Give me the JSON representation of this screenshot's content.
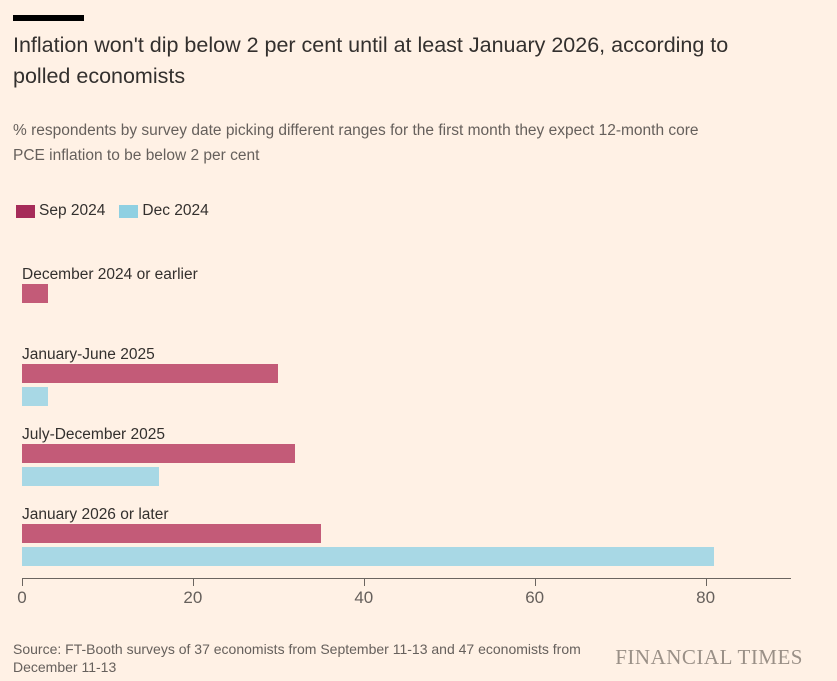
{
  "header": {
    "title": "Inflation won't dip below 2 per cent until at least January 2026, according to polled economists",
    "title_lines": [
      "Inflation won't dip below 2 per cent until at least January 2026, according to",
      "polled economists"
    ],
    "subtitle": "% respondents by survey date picking different ranges for the first month they expect 12-month core PCE inflation to be below 2 per cent",
    "subtitle_lines": [
      "% respondents by survey date picking different ranges for the first month they expect 12-month core",
      "PCE inflation to be below 2 per cent"
    ]
  },
  "chart_data": {
    "type": "bar",
    "orientation": "horizontal",
    "title": "Inflation won't dip below 2 per cent until at least January 2026, according to polled economists",
    "subtitle": "% respondents by survey date picking different ranges for the first month they expect 12-month core PCE inflation to be below 2 per cent",
    "categories": [
      "December 2024 or earlier",
      "January-June 2025",
      "July-December 2025",
      "January 2026 or later"
    ],
    "series": [
      {
        "name": "Sep 2024",
        "values": [
          3,
          30,
          32,
          35
        ],
        "bar_color": "#C35B78",
        "legend_color": "#A62C59"
      },
      {
        "name": "Dec 2024",
        "values": [
          0,
          3,
          16,
          81
        ],
        "bar_color": "#A8D8E5",
        "legend_color": "#8FD0E2"
      }
    ],
    "x_ticks": [
      0,
      20,
      40,
      60,
      80
    ],
    "xlim": [
      0,
      90
    ],
    "xlabel": "",
    "ylabel": "",
    "grid": false,
    "legend_position": "top-left"
  },
  "footer": {
    "source": "Source: FT-Booth surveys of 37 economists from September 11-13 and 47 economists from December 11-13",
    "source_lines": [
      "Source: FT-Booth surveys of 37 economists from September 11-13 and 47 economists from",
      "December 11-13"
    ],
    "logo": "FINANCIAL TIMES"
  },
  "colors": {
    "background": "#FFF1E5",
    "accent_bar": "#000000",
    "title_text": "#33302E",
    "muted_text": "#66605C",
    "axis": "#6B6560",
    "logo_text": "#9A9087"
  }
}
